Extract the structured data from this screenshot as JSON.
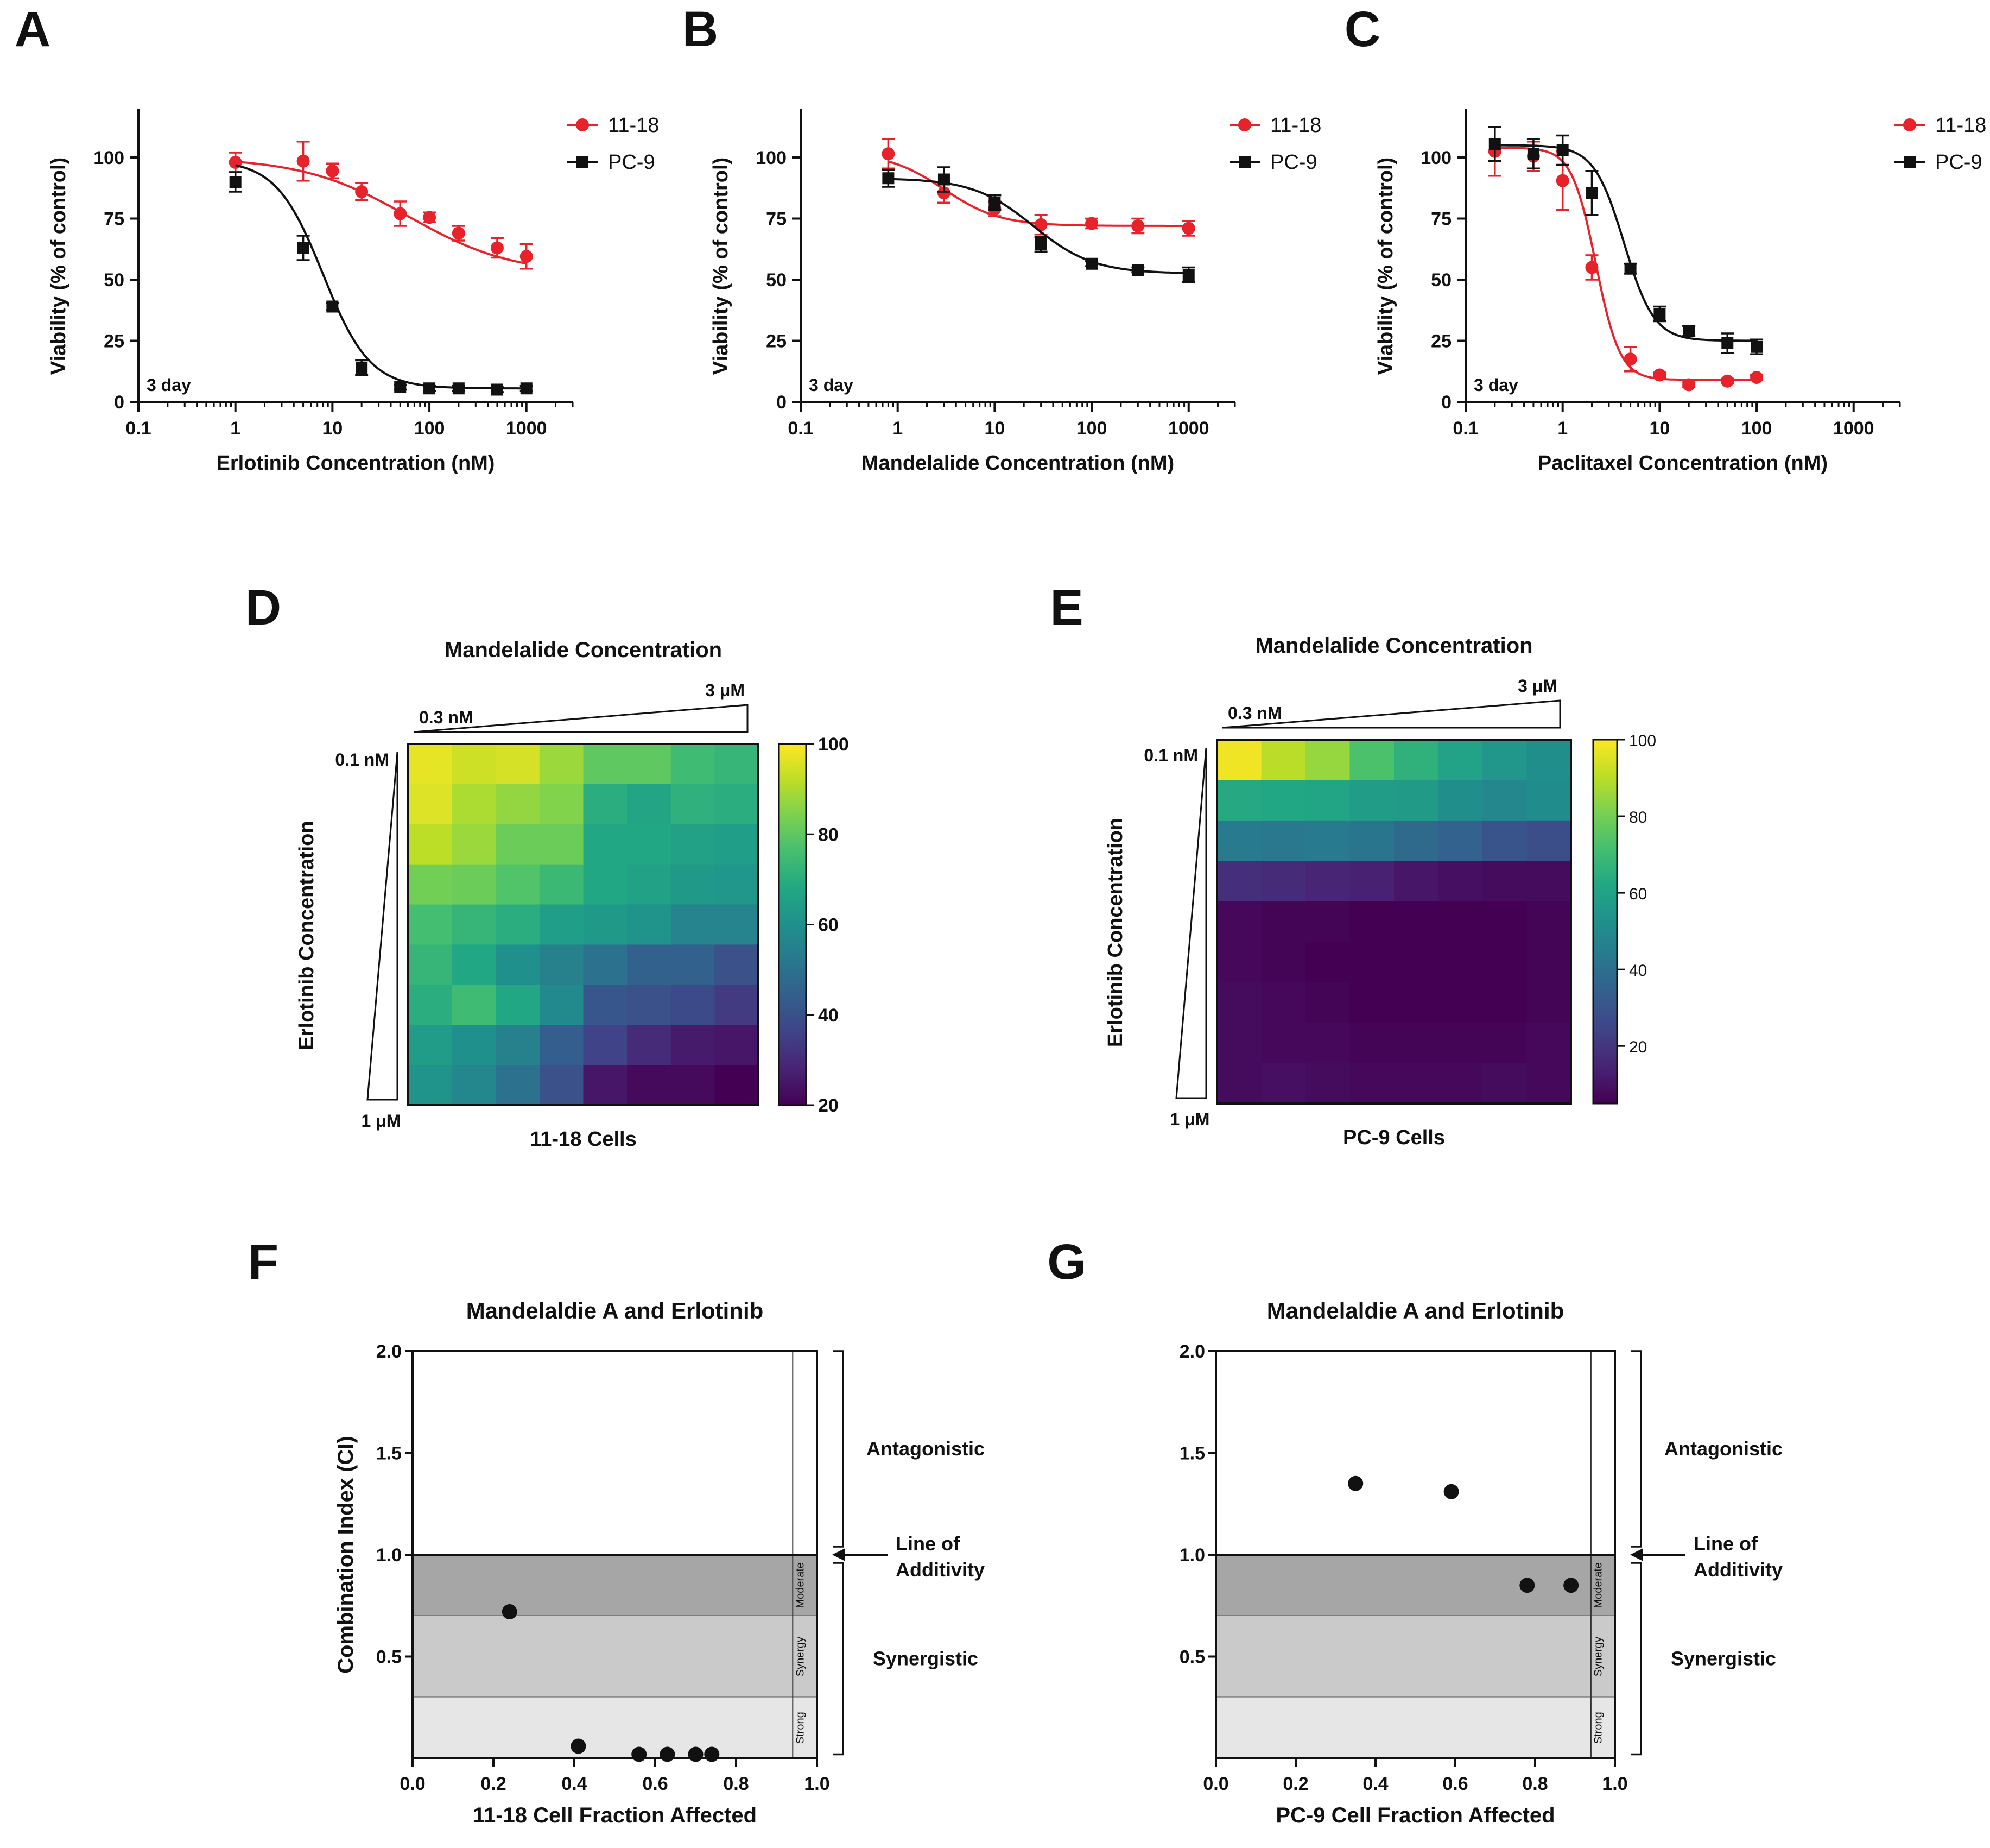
{
  "figure_kind": "multi-panel scientific figure",
  "colors": {
    "red": "#e8222b",
    "black": "#111111",
    "zone_moderate": "#a6a6a6",
    "zone_synergy": "#cacaca",
    "zone_strong": "#e6e6e6"
  },
  "chart_data": [
    {
      "panel": "A",
      "type": "line",
      "xscale": "log",
      "xlabel": "Erlotinib Concentration (nM)",
      "ylabel": "Viability (% of control)",
      "xticks": [
        "0.1",
        "1",
        "10",
        "100",
        "1000"
      ],
      "yticks": [
        "0",
        "25",
        "50",
        "75",
        "100"
      ],
      "xlim": [
        0.1,
        3000
      ],
      "ylim": [
        0,
        120
      ],
      "annotation": "3 day",
      "legend": "top-right",
      "series": [
        {
          "name": "11-18",
          "color": "#e8222b",
          "marker": "circle",
          "x": [
            1,
            5,
            10,
            20,
            50,
            100,
            200,
            500,
            1000
          ],
          "y": [
            98,
            98.5,
            94.5,
            86,
            77,
            75.5,
            69,
            63,
            59.5
          ],
          "err": [
            4,
            8,
            3,
            3.5,
            5,
            2,
            3,
            4,
            5
          ],
          "fit": {
            "top": 100,
            "bottom": 52,
            "ec50": 60,
            "hill": 0.8
          }
        },
        {
          "name": "PC-9",
          "color": "#111111",
          "marker": "square",
          "x": [
            1,
            5,
            10,
            20,
            50,
            100,
            200,
            500,
            1000
          ],
          "y": [
            90,
            63,
            39,
            14,
            6,
            5.5,
            5.5,
            5,
            5.5
          ],
          "err": [
            4,
            5,
            1.5,
            3,
            1,
            1,
            1,
            1,
            1
          ],
          "fit": {
            "top": 99,
            "bottom": 5.5,
            "ec50": 8,
            "hill": 1.8
          }
        }
      ]
    },
    {
      "panel": "B",
      "type": "line",
      "xscale": "log",
      "xlabel": "Mandelalide Concentration (nM)",
      "ylabel": "Viability (% of control)",
      "xticks": [
        "0.1",
        "1",
        "10",
        "100",
        "1000"
      ],
      "yticks": [
        "0",
        "25",
        "50",
        "75",
        "100"
      ],
      "xlim": [
        0.1,
        3000
      ],
      "ylim": [
        0,
        120
      ],
      "annotation": "3 day",
      "legend": "top-right",
      "series": [
        {
          "name": "11-18",
          "color": "#e8222b",
          "marker": "circle",
          "x": [
            0.8,
            3,
            10,
            30,
            100,
            300,
            1000
          ],
          "y": [
            101.5,
            85.5,
            79,
            72.5,
            73,
            72,
            71
          ],
          "err": [
            6,
            4,
            3,
            4,
            2,
            3,
            3
          ],
          "fit": {
            "top": 102,
            "bottom": 72,
            "ec50": 3,
            "hill": 1.5
          }
        },
        {
          "name": "PC-9",
          "color": "#111111",
          "marker": "square",
          "x": [
            0.8,
            3,
            10,
            30,
            100,
            300,
            1000
          ],
          "y": [
            91.5,
            91,
            81.5,
            64.5,
            56.5,
            54,
            52
          ],
          "err": [
            3.5,
            5,
            3,
            3,
            1,
            1,
            3
          ],
          "fit": {
            "top": 91.5,
            "bottom": 52.5,
            "ec50": 25,
            "hill": 1.4
          }
        }
      ]
    },
    {
      "panel": "C",
      "type": "line",
      "xscale": "log",
      "xlabel": "Paclitaxel Concentration (nM)",
      "ylabel": "Viability (% of control)",
      "xticks": [
        "0.1",
        "1",
        "10",
        "100",
        "1000"
      ],
      "yticks": [
        "0",
        "25",
        "50",
        "75",
        "100"
      ],
      "xlim": [
        0.1,
        3000
      ],
      "ylim": [
        0,
        120
      ],
      "annotation": "3 day",
      "legend": "top-right",
      "series": [
        {
          "name": "11-18",
          "color": "#e8222b",
          "marker": "circle",
          "x": [
            0.2,
            0.5,
            1,
            2,
            5,
            10,
            20,
            50,
            100
          ],
          "y": [
            102.5,
            100.5,
            90.5,
            55,
            17.5,
            11,
            7,
            8.5,
            10
          ],
          "err": [
            10,
            6,
            12,
            5,
            5,
            1,
            1,
            1,
            1
          ],
          "fit": {
            "top": 104,
            "bottom": 9,
            "ec50": 2.2,
            "hill": 3.5
          }
        },
        {
          "name": "PC-9",
          "color": "#111111",
          "marker": "square",
          "x": [
            0.2,
            0.5,
            1,
            2,
            5,
            10,
            20,
            50,
            100
          ],
          "y": [
            105.5,
            101.5,
            103,
            85.5,
            54.5,
            36,
            29,
            24,
            22.5
          ],
          "err": [
            7,
            6,
            6,
            9,
            2,
            3,
            2,
            4,
            3
          ],
          "fit": {
            "top": 105,
            "bottom": 25,
            "ec50": 4.3,
            "hill": 2.8
          }
        }
      ]
    },
    {
      "panel": "D",
      "type": "heatmap",
      "title": "Mandelalide Concentration",
      "xlabel": "11-18 Cells",
      "ylabel": "Erlotinib Concentration",
      "x_range_labels": [
        "0.3 nM",
        "3 μM"
      ],
      "y_range_labels": [
        "0.1 nM",
        "1 μM"
      ],
      "colorbar": {
        "min": 20,
        "max": 100,
        "ticks": [
          "20",
          "40",
          "60",
          "80",
          "100"
        ]
      },
      "values": [
        [
          97,
          94,
          95,
          88,
          80,
          80,
          75,
          73
        ],
        [
          96,
          90,
          87,
          85,
          70,
          67,
          71,
          70
        ],
        [
          92,
          88,
          82,
          82,
          68,
          68,
          66,
          65
        ],
        [
          83,
          82,
          78,
          74,
          68,
          66,
          63,
          62
        ],
        [
          76,
          73,
          70,
          65,
          63,
          61,
          56,
          56
        ],
        [
          73,
          68,
          60,
          55,
          50,
          45,
          45,
          40
        ],
        [
          70,
          75,
          68,
          58,
          42,
          40,
          38,
          34
        ],
        [
          64,
          60,
          55,
          44,
          36,
          30,
          26,
          25
        ],
        [
          61,
          57,
          50,
          40,
          25,
          22,
          22,
          20
        ]
      ]
    },
    {
      "panel": "E",
      "type": "heatmap",
      "title": "Mandelalide Concentration",
      "xlabel": "PC-9 Cells",
      "ylabel": "Erlotinib Concentration",
      "x_range_labels": [
        "0.3 nM",
        "3 μM"
      ],
      "y_range_labels": [
        "0.1 nM",
        "1 μM"
      ],
      "colorbar": {
        "min": 5,
        "max": 100,
        "ticks": [
          "20",
          "40",
          "60",
          "80",
          "100"
        ]
      },
      "values": [
        [
          98,
          90,
          85,
          73,
          66,
          60,
          55,
          52
        ],
        [
          63,
          62,
          61,
          58,
          57,
          52,
          49,
          51
        ],
        [
          44,
          43,
          44,
          42,
          38,
          35,
          30,
          28
        ],
        [
          18,
          17,
          15,
          14,
          11,
          9,
          8,
          8
        ],
        [
          7,
          6,
          6,
          5,
          5,
          5,
          5,
          6
        ],
        [
          7,
          6,
          5,
          5,
          5,
          4,
          5,
          6
        ],
        [
          8,
          7,
          6,
          5,
          5,
          5,
          5,
          6
        ],
        [
          8,
          7,
          7,
          6,
          6,
          6,
          6,
          7
        ],
        [
          8,
          9,
          8,
          7,
          7,
          7,
          8,
          7
        ]
      ]
    },
    {
      "panel": "F",
      "type": "scatter",
      "title": "Mandelaldie A and Erlotinib",
      "xlabel": "11-18 Cell Fraction Affected",
      "ylabel": "Combination Index (CI)",
      "xlim": [
        0,
        1
      ],
      "ylim": [
        0,
        2
      ],
      "xticks": [
        "0.0",
        "0.2",
        "0.4",
        "0.6",
        "0.8",
        "1.0"
      ],
      "yticks": [
        "0.5",
        "1.0",
        "1.5",
        "2.0"
      ],
      "zones": [
        {
          "label": "Moderate",
          "from": 0.7,
          "to": 1.0
        },
        {
          "label": "Synergy",
          "from": 0.3,
          "to": 0.7
        },
        {
          "label": "Strong",
          "from": 0.0,
          "to": 0.3
        }
      ],
      "brackets": [
        "Antagonistic",
        "Synergistic"
      ],
      "additivity_label": [
        "Line of",
        "Additivity"
      ],
      "points": [
        [
          0.24,
          0.72
        ],
        [
          0.41,
          0.06
        ],
        [
          0.56,
          0.02
        ],
        [
          0.63,
          0.02
        ],
        [
          0.7,
          0.02
        ],
        [
          0.74,
          0.02
        ]
      ]
    },
    {
      "panel": "G",
      "type": "scatter",
      "title": "Mandelaldie A and Erlotinib",
      "xlabel": "PC-9 Cell Fraction Affected",
      "ylabel": "",
      "xlim": [
        0,
        1
      ],
      "ylim": [
        0,
        2
      ],
      "xticks": [
        "0.0",
        "0.2",
        "0.4",
        "0.6",
        "0.8",
        "1.0"
      ],
      "yticks": [
        "0.5",
        "1.0",
        "1.5",
        "2.0"
      ],
      "zones": [
        {
          "label": "Moderate",
          "from": 0.7,
          "to": 1.0
        },
        {
          "label": "Synergy",
          "from": 0.3,
          "to": 0.7
        },
        {
          "label": "Strong",
          "from": 0.0,
          "to": 0.3
        }
      ],
      "brackets": [
        "Antagonistic",
        "Synergistic"
      ],
      "additivity_label": [
        "Line of",
        "Additivity"
      ],
      "points": [
        [
          0.35,
          1.35
        ],
        [
          0.59,
          1.31
        ],
        [
          0.78,
          0.85
        ],
        [
          0.89,
          0.85
        ]
      ]
    }
  ]
}
